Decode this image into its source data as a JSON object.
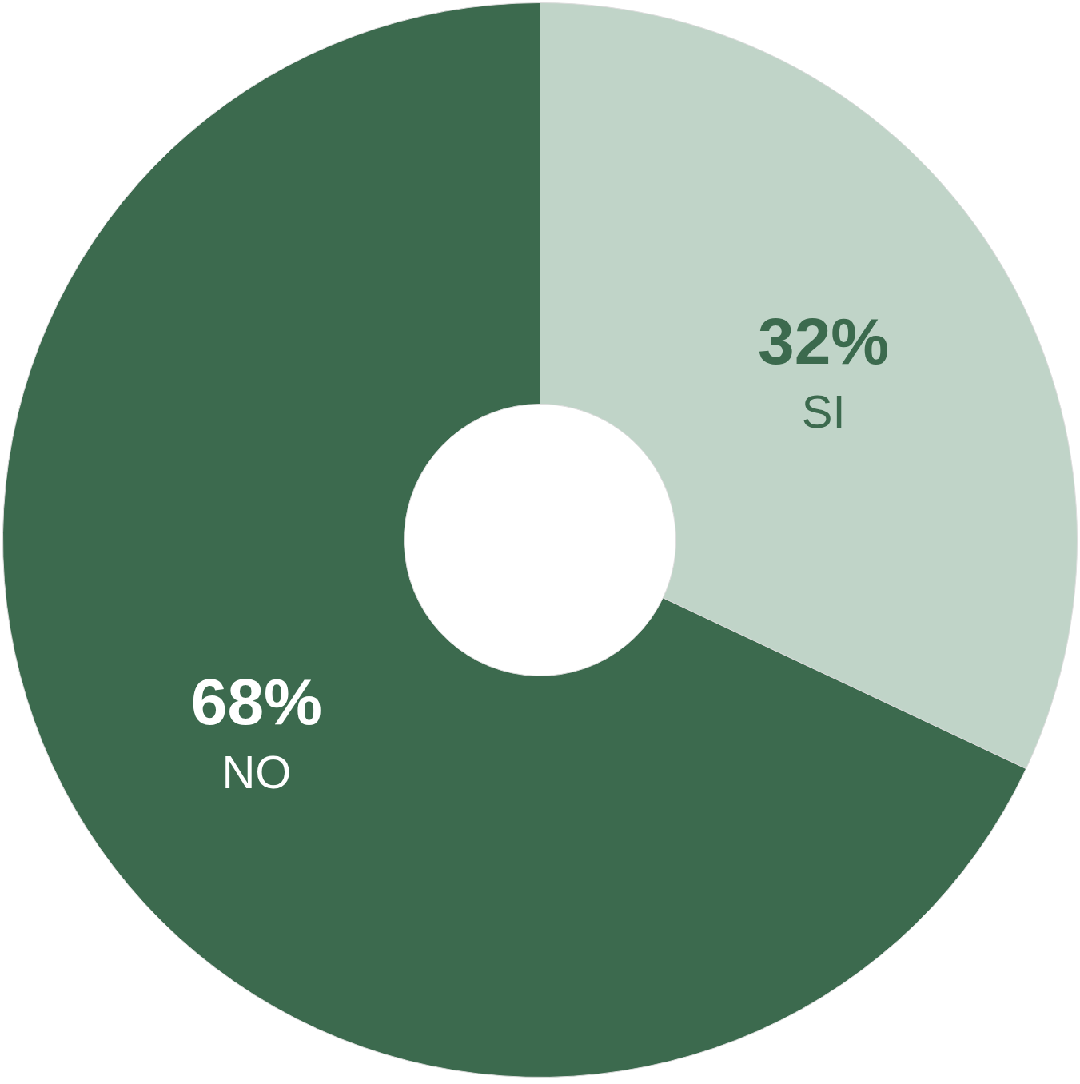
{
  "chart_data": {
    "type": "donut",
    "categories": [
      "SI",
      "NO"
    ],
    "values": [
      32,
      68
    ],
    "value_labels": [
      "32%",
      "68%"
    ],
    "colors": [
      "#c0d4c8",
      "#3c6a4e"
    ]
  }
}
